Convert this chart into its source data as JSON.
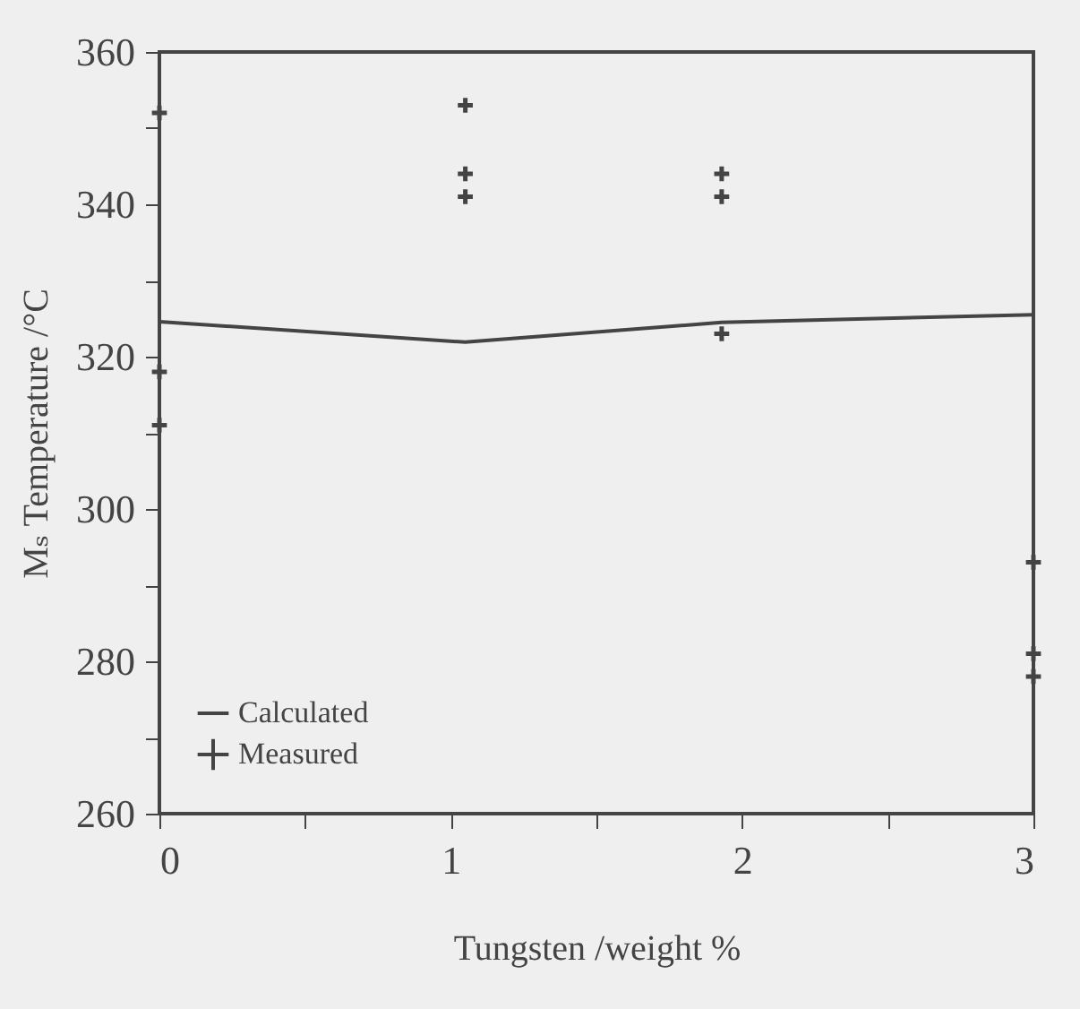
{
  "chart_data": {
    "type": "line",
    "xlabel": "Tungsten /weight %",
    "ylabel": "Mₛ Temperature /°C",
    "xlim": [
      0,
      3
    ],
    "ylim": [
      260,
      360
    ],
    "xticks": [
      0,
      {
        "value": 0.5,
        "label": null
      },
      1,
      {
        "value": 1.5,
        "label": null
      },
      2,
      {
        "value": 2.5,
        "label": null
      },
      3
    ],
    "yticks": [
      260,
      {
        "value": 270,
        "label": null
      },
      280,
      {
        "value": 290,
        "label": null
      },
      300,
      {
        "value": 310,
        "label": null
      },
      320,
      {
        "value": 330,
        "label": null
      },
      340,
      {
        "value": 350,
        "label": null
      },
      360
    ],
    "grid": false,
    "legend": "bottom left",
    "series": [
      {
        "name": "Calculated",
        "type": "line",
        "color": "#444444",
        "x": [
          0,
          1.05,
          1.93,
          3
        ],
        "values": [
          324.6,
          321.9,
          324.5,
          325.5
        ]
      },
      {
        "name": "Measured",
        "type": "scatter",
        "marker": "cross",
        "color": "#444444",
        "x": [
          0,
          0,
          0,
          1.05,
          1.05,
          1.05,
          1.93,
          1.93,
          1.93,
          3,
          3,
          3
        ],
        "values": [
          352,
          318,
          311,
          353,
          344,
          341,
          344,
          341,
          323,
          293,
          281,
          278
        ]
      }
    ]
  }
}
